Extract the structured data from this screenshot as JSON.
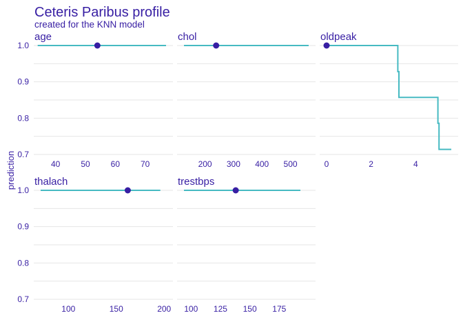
{
  "title": "Ceteris Paribus profile",
  "subtitle": "created for the KNN model",
  "colors": {
    "text": "#371ea3",
    "line": "#46bac2",
    "point": "#371ea3",
    "grid": "#e6e6e6"
  },
  "chart_data": {
    "type": "line",
    "ylabel": "prediction",
    "ylim": [
      0.7,
      1.0
    ],
    "yticks": [
      0.7,
      0.8,
      0.9,
      1.0
    ],
    "ytick_labels": [
      "0.7",
      "0.8",
      "0.9",
      "1.0"
    ],
    "grid": true,
    "panels": [
      {
        "variable": "age",
        "xlim": [
          35,
          77
        ],
        "xticks": [
          40,
          50,
          60,
          70
        ],
        "xtick_labels": [
          "40",
          "50",
          "60",
          "70"
        ],
        "series": [
          {
            "x": [
              34,
              77
            ],
            "y": [
              1.0,
              1.0
            ]
          }
        ],
        "observation": {
          "x": 54,
          "y": 1.0
        }
      },
      {
        "variable": "chol",
        "xlim": [
          126,
          564
        ],
        "xticks": [
          200,
          300,
          400,
          500
        ],
        "xtick_labels": [
          "200",
          "300",
          "400",
          "500"
        ],
        "series": [
          {
            "x": [
              126,
              564
            ],
            "y": [
              1.0,
              1.0
            ]
          }
        ],
        "observation": {
          "x": 239,
          "y": 1.0
        }
      },
      {
        "variable": "oldpeak",
        "xlim": [
          0,
          5.6
        ],
        "xticks": [
          0,
          2,
          4
        ],
        "xtick_labels": [
          "0",
          "2",
          "4"
        ],
        "series": [
          {
            "x": [
              0,
              3.2,
              3.2,
              3.25,
              3.25,
              5.0,
              5.0,
              5.05,
              5.05,
              5.6
            ],
            "y": [
              1.0,
              1.0,
              0.928,
              0.928,
              0.857,
              0.857,
              0.786,
              0.786,
              0.714,
              0.714
            ]
          }
        ],
        "observation": {
          "x": 0.0,
          "y": 1.0
        }
      },
      {
        "variable": "thalach",
        "xlim": [
          71,
          202
        ],
        "xticks": [
          100,
          150,
          200
        ],
        "xtick_labels": [
          "100",
          "150",
          "200"
        ],
        "series": [
          {
            "x": [
              71,
              196
            ],
            "y": [
              1.0,
              1.0
            ]
          }
        ],
        "observation": {
          "x": 162,
          "y": 1.0
        }
      },
      {
        "variable": "trestbps",
        "xlim": [
          94,
          200
        ],
        "xticks": [
          100,
          125,
          150,
          175
        ],
        "xtick_labels": [
          "100",
          "125",
          "150",
          "175"
        ],
        "series": [
          {
            "x": [
              94,
              193
            ],
            "y": [
              1.0,
              1.0
            ]
          }
        ],
        "observation": {
          "x": 138,
          "y": 1.0
        }
      }
    ]
  }
}
